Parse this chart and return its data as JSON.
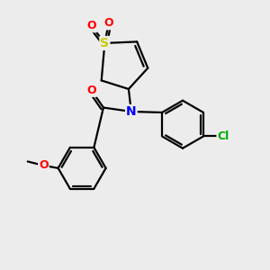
{
  "bg_color": "#ececec",
  "atom_colors": {
    "C": "#000000",
    "N": "#0000ff",
    "O": "#ff0000",
    "S": "#cccc00",
    "Cl": "#00aa00"
  },
  "bond_color": "#000000",
  "bond_width": 1.6,
  "font_size": 9,
  "fig_size": [
    3.0,
    3.0
  ],
  "dpi": 100
}
